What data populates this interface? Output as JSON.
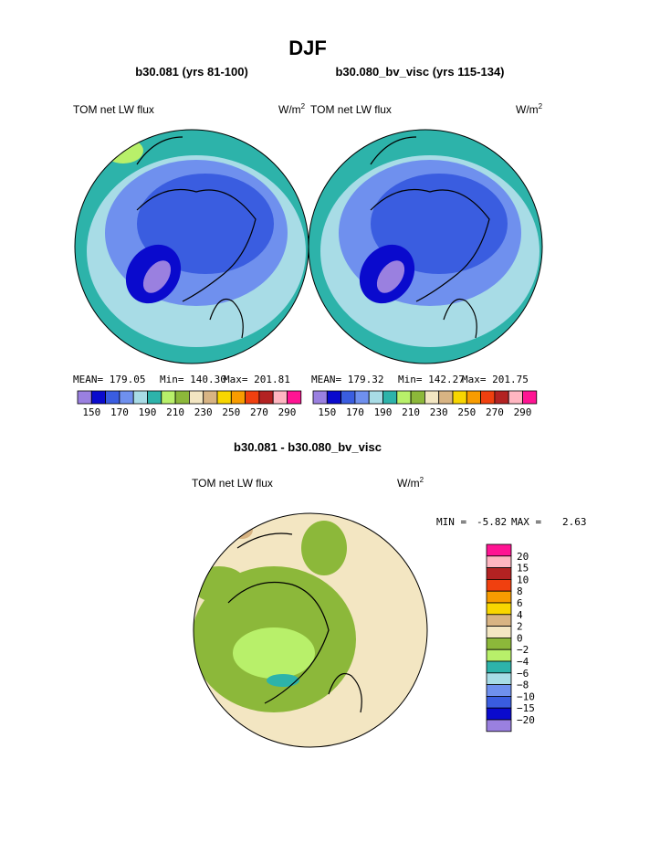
{
  "title": "DJF",
  "panels": [
    {
      "title": "b30.081 (yrs 81-100)",
      "variable": "TOM net LW flux",
      "units": "W/m",
      "units_power": "2",
      "stats": [
        "MEAN= 179.05",
        "Min= 140.30",
        "Max= 201.81"
      ]
    },
    {
      "title": "b30.080_bv_visc (yrs 115-134)",
      "variable": "TOM net LW flux",
      "units": "W/m",
      "units_power": "2",
      "stats": [
        "MEAN= 179.32",
        "Min= 142.27",
        "Max= 201.75"
      ]
    }
  ],
  "colorbar": {
    "colors": [
      "#9a80e0",
      "#0a0acd",
      "#3a5de0",
      "#6f90ee",
      "#a8dce6",
      "#2db3aa",
      "#b8f06a",
      "#8cb83a",
      "#f3e6c2",
      "#d8b483",
      "#f8d600",
      "#f89c00",
      "#f0400f",
      "#b32222",
      "#ffb6c1",
      "#ff1493"
    ],
    "labels": [
      "150",
      "170",
      "190",
      "210",
      "230",
      "250",
      "270",
      "290"
    ]
  },
  "difference": {
    "title": "b30.081 - b30.080_bv_visc",
    "variable": "TOM net LW flux",
    "units": "W/m",
    "units_power": "2",
    "min_label": "MIN =",
    "min": "-5.82",
    "max_label": "MAX =",
    "max": "2.63",
    "colorbar": {
      "colors": [
        "#ff1493",
        "#ffb6c1",
        "#b32222",
        "#f0400f",
        "#f89c00",
        "#f8d600",
        "#d8b483",
        "#f3e6c2",
        "#8cb83a",
        "#b8f06a",
        "#2db3aa",
        "#a8dce6",
        "#6f90ee",
        "#3a5de0",
        "#0a0acd",
        "#9a80e0"
      ],
      "labels": [
        "20",
        "15",
        "10",
        "8",
        "6",
        "4",
        "2",
        "0",
        "−2",
        "−4",
        "−6",
        "−8",
        "−10",
        "−15",
        "−20"
      ]
    }
  }
}
